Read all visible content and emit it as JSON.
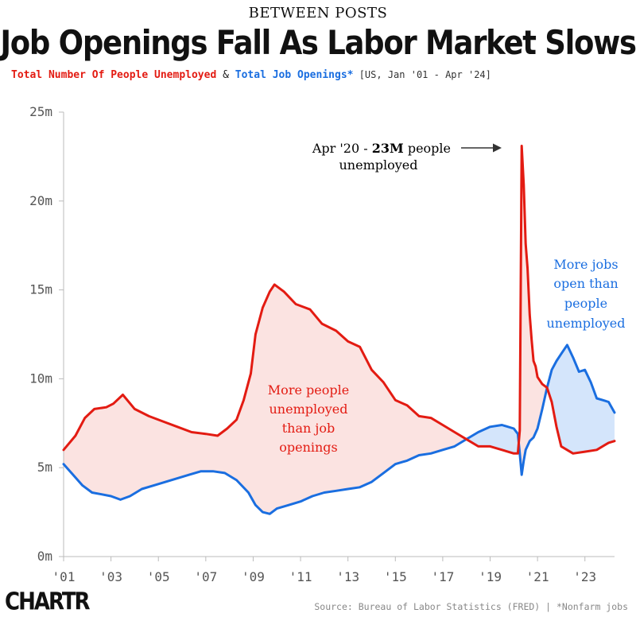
{
  "header": {
    "kicker": "BETWEEN POSTS",
    "title": "Job Openings Fall As Labor Market Slows",
    "subtitle_red": "Total Number Of People Unemployed",
    "subtitle_amp": " & ",
    "subtitle_blue": "Total Job Openings*",
    "subtitle_meta": " [US, Jan '01 - Apr '24]"
  },
  "footer": {
    "logo": "CHARTR",
    "source": "Source: Bureau of Labor Statistics (FRED)  | *Nonfarm jobs"
  },
  "colors": {
    "unemployed": "#e31b12",
    "openings": "#1a6ee0",
    "fill_unemployed_above": "#fbe3e1",
    "fill_openings_above": "#d4e5fb"
  },
  "chart_data": {
    "type": "line",
    "title": "Job Openings Fall As Labor Market Slows",
    "x_unit": "year",
    "ylim": [
      0,
      25
    ],
    "y_ticks": [
      0,
      5,
      10,
      15,
      20,
      25
    ],
    "y_tick_labels": [
      "0m",
      "5m",
      "10m",
      "15m",
      "20m",
      "25m"
    ],
    "x_ticks": [
      2001,
      2003,
      2005,
      2007,
      2009,
      2011,
      2013,
      2015,
      2017,
      2019,
      2021,
      2023
    ],
    "x_tick_labels": [
      "'01",
      "'03",
      "'05",
      "'07",
      "'09",
      "'11",
      "'13",
      "'15",
      "'17",
      "'19",
      "'21",
      "'23"
    ],
    "grid": false,
    "series": [
      {
        "name": "Total Number Of People Unemployed",
        "x": [
          2001.0,
          2001.5,
          2001.9,
          2002.3,
          2002.8,
          2003.1,
          2003.5,
          2004.0,
          2004.6,
          2005.2,
          2005.8,
          2006.4,
          2007.0,
          2007.5,
          2007.9,
          2008.3,
          2008.6,
          2008.9,
          2009.1,
          2009.4,
          2009.7,
          2009.9,
          2010.3,
          2010.8,
          2011.4,
          2011.9,
          2012.5,
          2013.0,
          2013.5,
          2014.0,
          2014.5,
          2015.0,
          2015.5,
          2016.0,
          2016.5,
          2017.0,
          2017.5,
          2018.0,
          2018.5,
          2019.0,
          2019.5,
          2020.0,
          2020.17,
          2020.25,
          2020.33,
          2020.42,
          2020.5,
          2020.58,
          2020.67,
          2020.75,
          2020.83,
          2020.92,
          2021.0,
          2021.2,
          2021.4,
          2021.6,
          2021.8,
          2022.0,
          2022.5,
          2023.0,
          2023.5,
          2024.0,
          2024.25
        ],
        "values": [
          6.0,
          6.8,
          7.8,
          8.3,
          8.4,
          8.6,
          9.1,
          8.3,
          7.9,
          7.6,
          7.3,
          7.0,
          6.9,
          6.8,
          7.2,
          7.7,
          8.8,
          10.3,
          12.5,
          14.0,
          14.9,
          15.3,
          14.9,
          14.2,
          13.9,
          13.1,
          12.7,
          12.1,
          11.8,
          10.5,
          9.8,
          8.8,
          8.5,
          7.9,
          7.8,
          7.4,
          7.0,
          6.6,
          6.2,
          6.2,
          6.0,
          5.8,
          5.8,
          7.1,
          23.1,
          20.9,
          17.6,
          16.2,
          13.6,
          12.2,
          11.0,
          10.7,
          10.1,
          9.7,
          9.5,
          8.7,
          7.3,
          6.2,
          5.8,
          5.9,
          6.0,
          6.4,
          6.5
        ]
      },
      {
        "name": "Total Job Openings*",
        "x": [
          2001.0,
          2001.4,
          2001.8,
          2002.2,
          2002.6,
          2003.0,
          2003.4,
          2003.8,
          2004.3,
          2004.8,
          2005.3,
          2005.8,
          2006.3,
          2006.8,
          2007.3,
          2007.8,
          2008.3,
          2008.8,
          2009.1,
          2009.4,
          2009.7,
          2010.0,
          2010.5,
          2011.0,
          2011.5,
          2012.0,
          2012.5,
          2013.0,
          2013.5,
          2014.0,
          2014.5,
          2015.0,
          2015.5,
          2016.0,
          2016.5,
          2017.0,
          2017.5,
          2018.0,
          2018.5,
          2019.0,
          2019.5,
          2020.0,
          2020.17,
          2020.25,
          2020.33,
          2020.42,
          2020.5,
          2020.67,
          2020.83,
          2021.0,
          2021.2,
          2021.4,
          2021.6,
          2021.8,
          2022.0,
          2022.25,
          2022.5,
          2022.75,
          2023.0,
          2023.25,
          2023.5,
          2023.75,
          2024.0,
          2024.25
        ],
        "values": [
          5.2,
          4.6,
          4.0,
          3.6,
          3.5,
          3.4,
          3.2,
          3.4,
          3.8,
          4.0,
          4.2,
          4.4,
          4.6,
          4.8,
          4.8,
          4.7,
          4.3,
          3.6,
          2.9,
          2.5,
          2.4,
          2.7,
          2.9,
          3.1,
          3.4,
          3.6,
          3.7,
          3.8,
          3.9,
          4.2,
          4.7,
          5.2,
          5.4,
          5.7,
          5.8,
          6.0,
          6.2,
          6.6,
          7.0,
          7.3,
          7.4,
          7.2,
          6.9,
          5.8,
          4.6,
          5.4,
          6.0,
          6.5,
          6.7,
          7.2,
          8.3,
          9.5,
          10.5,
          11.0,
          11.4,
          11.9,
          11.2,
          10.4,
          10.5,
          9.8,
          8.9,
          8.8,
          8.7,
          8.1
        ]
      }
    ],
    "annotations": {
      "spike_line1_pre": "Apr '20 - ",
      "spike_line1_bold": "23M",
      "spike_line1_post": " people",
      "spike_line2": "unemployed",
      "red_area": [
        "More people",
        "unemployed",
        "than job",
        "openings"
      ],
      "blue_area": [
        "More jobs",
        "open than",
        "people",
        "unemployed"
      ]
    }
  }
}
